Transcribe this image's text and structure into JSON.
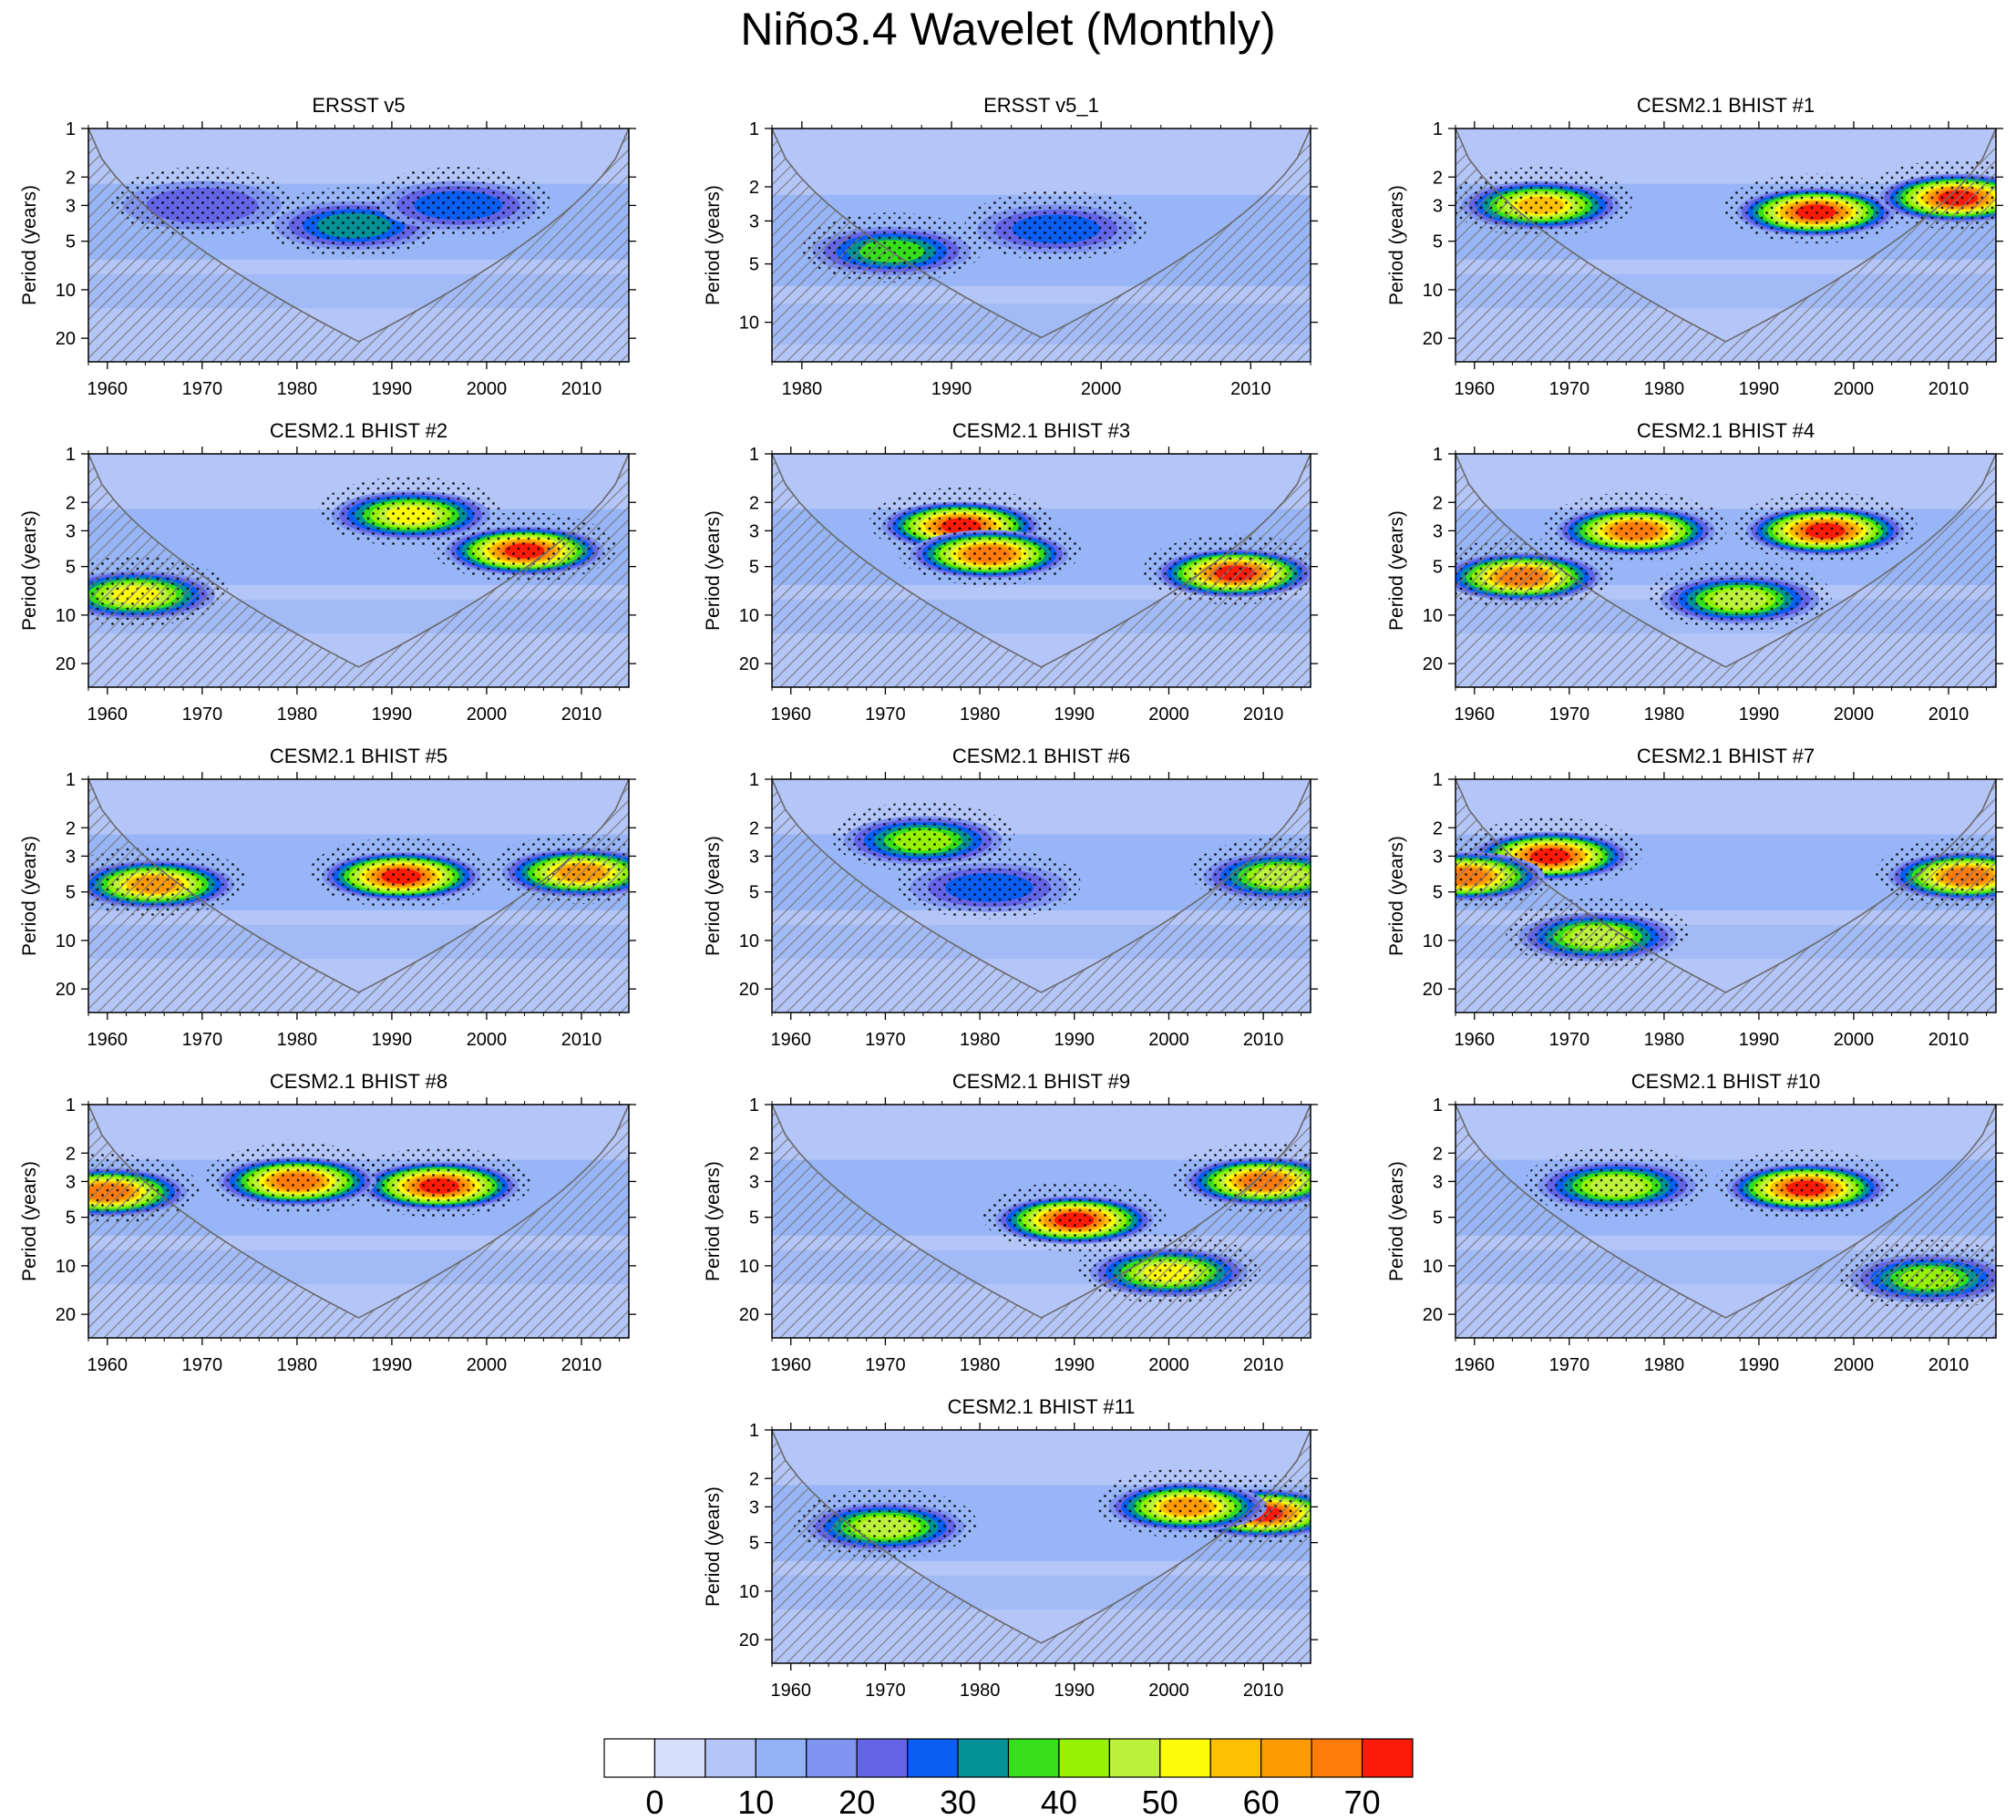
{
  "figure": {
    "title": "Niño3.4 Wavelet (Monthly)"
  },
  "colorbar": {
    "levels": [
      0,
      5,
      10,
      15,
      20,
      25,
      30,
      35,
      40,
      45,
      50,
      55,
      60,
      65,
      70
    ],
    "labels": [
      "0",
      "10",
      "20",
      "30",
      "40",
      "50",
      "60",
      "70"
    ],
    "colors": [
      "#ffffff",
      "#d7e0fb",
      "#b4c5f8",
      "#94b2f6",
      "#7f95f1",
      "#6465e6",
      "#0a5ef2",
      "#049296",
      "#35e01b",
      "#95f205",
      "#bcf23c",
      "#fdfb05",
      "#fdc003",
      "#fd9a04",
      "#ff7b0c",
      "#fc1a08"
    ]
  },
  "chart_data": [
    {
      "type": "heatmap",
      "title": "ERSST v5",
      "xlabel": "",
      "ylabel": "Period (years)",
      "xlim": [
        1958,
        2015
      ],
      "ylim": [
        1,
        28
      ],
      "yscale": "log",
      "xticks": [
        "1960",
        "1970",
        "1980",
        "1990",
        "2000",
        "2010"
      ],
      "yticks": [
        "1",
        "2",
        "3",
        "5",
        "10",
        "20"
      ],
      "cone_of_influence": true,
      "significance": "stippling",
      "features": [
        {
          "year": 1986,
          "period": 4.0,
          "power": 30
        },
        {
          "year": 1997,
          "period": 3.0,
          "power": 25
        },
        {
          "year": 1970,
          "period": 3.0,
          "power": 20
        }
      ]
    },
    {
      "type": "heatmap",
      "title": "ERSST v5_1",
      "xlabel": "",
      "ylabel": "Period (years)",
      "xlim": [
        1978,
        2014
      ],
      "ylim": [
        1,
        16
      ],
      "yscale": "log",
      "xticks": [
        "1980",
        "1990",
        "2000",
        "2010"
      ],
      "yticks": [
        "1",
        "2",
        "3",
        "5",
        "10"
      ],
      "cone_of_influence": true,
      "significance": "stippling",
      "features": [
        {
          "year": 1986,
          "period": 4.3,
          "power": 35
        },
        {
          "year": 1997,
          "period": 3.3,
          "power": 25
        }
      ]
    },
    {
      "type": "heatmap",
      "title": "CESM2.1 BHIST #1",
      "xlabel": "",
      "ylabel": "Period (years)",
      "xlim": [
        1958,
        2015
      ],
      "ylim": [
        1,
        28
      ],
      "yscale": "log",
      "xticks": [
        "1960",
        "1970",
        "1980",
        "1990",
        "2000",
        "2010"
      ],
      "yticks": [
        "1",
        "2",
        "3",
        "5",
        "10",
        "20"
      ],
      "cone_of_influence": true,
      "significance": "stippling",
      "features": [
        {
          "year": 1996,
          "period": 3.3,
          "power": 70
        },
        {
          "year": 2011,
          "period": 2.7,
          "power": 70
        },
        {
          "year": 1967,
          "period": 3.0,
          "power": 55
        }
      ]
    },
    {
      "type": "heatmap",
      "title": "CESM2.1 BHIST #2",
      "xlabel": "",
      "ylabel": "Period (years)",
      "xlim": [
        1958,
        2015
      ],
      "ylim": [
        1,
        28
      ],
      "yscale": "log",
      "xticks": [
        "1960",
        "1970",
        "1980",
        "1990",
        "2000",
        "2010"
      ],
      "yticks": [
        "1",
        "2",
        "3",
        "5",
        "10",
        "20"
      ],
      "cone_of_influence": true,
      "significance": "stippling",
      "features": [
        {
          "year": 2004,
          "period": 4.0,
          "power": 70
        },
        {
          "year": 1963,
          "period": 7.5,
          "power": 50
        },
        {
          "year": 1992,
          "period": 2.4,
          "power": 50
        }
      ]
    },
    {
      "type": "heatmap",
      "title": "CESM2.1 BHIST #3",
      "xlabel": "",
      "ylabel": "Period (years)",
      "xlim": [
        1958,
        2015
      ],
      "ylim": [
        1,
        28
      ],
      "yscale": "log",
      "xticks": [
        "1960",
        "1970",
        "1980",
        "1990",
        "2000",
        "2010"
      ],
      "yticks": [
        "1",
        "2",
        "3",
        "5",
        "10",
        "20"
      ],
      "cone_of_influence": true,
      "significance": "stippling",
      "features": [
        {
          "year": 1978,
          "period": 2.8,
          "power": 70
        },
        {
          "year": 1981,
          "period": 4.2,
          "power": 65
        },
        {
          "year": 2007,
          "period": 5.5,
          "power": 70
        }
      ]
    },
    {
      "type": "heatmap",
      "title": "CESM2.1 BHIST #4",
      "xlabel": "",
      "ylabel": "Period (years)",
      "xlim": [
        1958,
        2015
      ],
      "ylim": [
        1,
        28
      ],
      "yscale": "log",
      "xticks": [
        "1960",
        "1970",
        "1980",
        "1990",
        "2000",
        "2010"
      ],
      "yticks": [
        "1",
        "2",
        "3",
        "5",
        "10",
        "20"
      ],
      "cone_of_influence": true,
      "significance": "stippling",
      "features": [
        {
          "year": 1997,
          "period": 3.0,
          "power": 70
        },
        {
          "year": 1977,
          "period": 3.0,
          "power": 65
        },
        {
          "year": 1965,
          "period": 5.8,
          "power": 65
        },
        {
          "year": 1988,
          "period": 8.0,
          "power": 45
        }
      ]
    },
    {
      "type": "heatmap",
      "title": "CESM2.1 BHIST #5",
      "xlabel": "",
      "ylabel": "Period (years)",
      "xlim": [
        1958,
        2015
      ],
      "ylim": [
        1,
        28
      ],
      "yscale": "log",
      "xticks": [
        "1960",
        "1970",
        "1980",
        "1990",
        "2000",
        "2010"
      ],
      "yticks": [
        "1",
        "2",
        "3",
        "5",
        "10",
        "20"
      ],
      "cone_of_influence": true,
      "significance": "stippling",
      "features": [
        {
          "year": 1991,
          "period": 4.0,
          "power": 70
        },
        {
          "year": 1965,
          "period": 4.5,
          "power": 60
        },
        {
          "year": 2010,
          "period": 3.8,
          "power": 60
        }
      ]
    },
    {
      "type": "heatmap",
      "title": "CESM2.1 BHIST #6",
      "xlabel": "",
      "ylabel": "Period (years)",
      "xlim": [
        1958,
        2015
      ],
      "ylim": [
        1,
        28
      ],
      "yscale": "log",
      "xticks": [
        "1960",
        "1970",
        "1980",
        "1990",
        "2000",
        "2010"
      ],
      "yticks": [
        "1",
        "2",
        "3",
        "5",
        "10",
        "20"
      ],
      "cone_of_influence": true,
      "significance": "stippling",
      "features": [
        {
          "year": 2012,
          "period": 4.0,
          "power": 45
        },
        {
          "year": 1974,
          "period": 2.4,
          "power": 40
        },
        {
          "year": 1981,
          "period": 4.7,
          "power": 25
        }
      ]
    },
    {
      "type": "heatmap",
      "title": "CESM2.1 BHIST #7",
      "xlabel": "",
      "ylabel": "Period (years)",
      "xlim": [
        1958,
        2015
      ],
      "ylim": [
        1,
        28
      ],
      "yscale": "log",
      "xticks": [
        "1960",
        "1970",
        "1980",
        "1990",
        "2000",
        "2010"
      ],
      "yticks": [
        "1",
        "2",
        "3",
        "5",
        "10",
        "20"
      ],
      "cone_of_influence": true,
      "significance": "stippling",
      "features": [
        {
          "year": 1968,
          "period": 3.0,
          "power": 70
        },
        {
          "year": 1959,
          "period": 4.0,
          "power": 65
        },
        {
          "year": 2012,
          "period": 4.0,
          "power": 65
        },
        {
          "year": 1973,
          "period": 9.5,
          "power": 45
        }
      ]
    },
    {
      "type": "heatmap",
      "title": "CESM2.1 BHIST #8",
      "xlabel": "",
      "ylabel": "Period (years)",
      "xlim": [
        1958,
        2015
      ],
      "ylim": [
        1,
        28
      ],
      "yscale": "log",
      "xticks": [
        "1960",
        "1970",
        "1980",
        "1990",
        "2000",
        "2010"
      ],
      "yticks": [
        "1",
        "2",
        "3",
        "5",
        "10",
        "20"
      ],
      "cone_of_influence": true,
      "significance": "stippling",
      "features": [
        {
          "year": 1995,
          "period": 3.2,
          "power": 70
        },
        {
          "year": 1980,
          "period": 3.0,
          "power": 65
        },
        {
          "year": 1960,
          "period": 3.5,
          "power": 65
        }
      ]
    },
    {
      "type": "heatmap",
      "title": "CESM2.1 BHIST #9",
      "xlabel": "",
      "ylabel": "Period (years)",
      "xlim": [
        1958,
        2015
      ],
      "ylim": [
        1,
        28
      ],
      "yscale": "log",
      "xticks": [
        "1960",
        "1970",
        "1980",
        "1990",
        "2000",
        "2010"
      ],
      "yticks": [
        "1",
        "2",
        "3",
        "5",
        "10",
        "20"
      ],
      "cone_of_influence": true,
      "significance": "stippling",
      "features": [
        {
          "year": 1990,
          "period": 5.2,
          "power": 70
        },
        {
          "year": 2010,
          "period": 3.0,
          "power": 65
        },
        {
          "year": 2000,
          "period": 11.0,
          "power": 50
        }
      ]
    },
    {
      "type": "heatmap",
      "title": "CESM2.1 BHIST #10",
      "xlabel": "",
      "ylabel": "Period (years)",
      "xlim": [
        1958,
        2015
      ],
      "ylim": [
        1,
        28
      ],
      "yscale": "log",
      "xticks": [
        "1960",
        "1970",
        "1980",
        "1990",
        "2000",
        "2010"
      ],
      "yticks": [
        "1",
        "2",
        "3",
        "5",
        "10",
        "20"
      ],
      "cone_of_influence": true,
      "significance": "stippling",
      "features": [
        {
          "year": 1995,
          "period": 3.3,
          "power": 70
        },
        {
          "year": 1975,
          "period": 3.2,
          "power": 45
        },
        {
          "year": 2008,
          "period": 12.0,
          "power": 40
        }
      ]
    },
    {
      "type": "heatmap",
      "title": "CESM2.1 BHIST #11",
      "xlabel": "",
      "ylabel": "Period (years)",
      "xlim": [
        1958,
        2015
      ],
      "ylim": [
        1,
        28
      ],
      "yscale": "log",
      "xticks": [
        "1960",
        "1970",
        "1980",
        "1990",
        "2000",
        "2010"
      ],
      "yticks": [
        "1",
        "2",
        "3",
        "5",
        "10",
        "20"
      ],
      "cone_of_influence": true,
      "significance": "stippling",
      "features": [
        {
          "year": 2010,
          "period": 3.3,
          "power": 70
        },
        {
          "year": 2002,
          "period": 3.0,
          "power": 60
        },
        {
          "year": 1970,
          "period": 4.0,
          "power": 45
        }
      ]
    }
  ]
}
